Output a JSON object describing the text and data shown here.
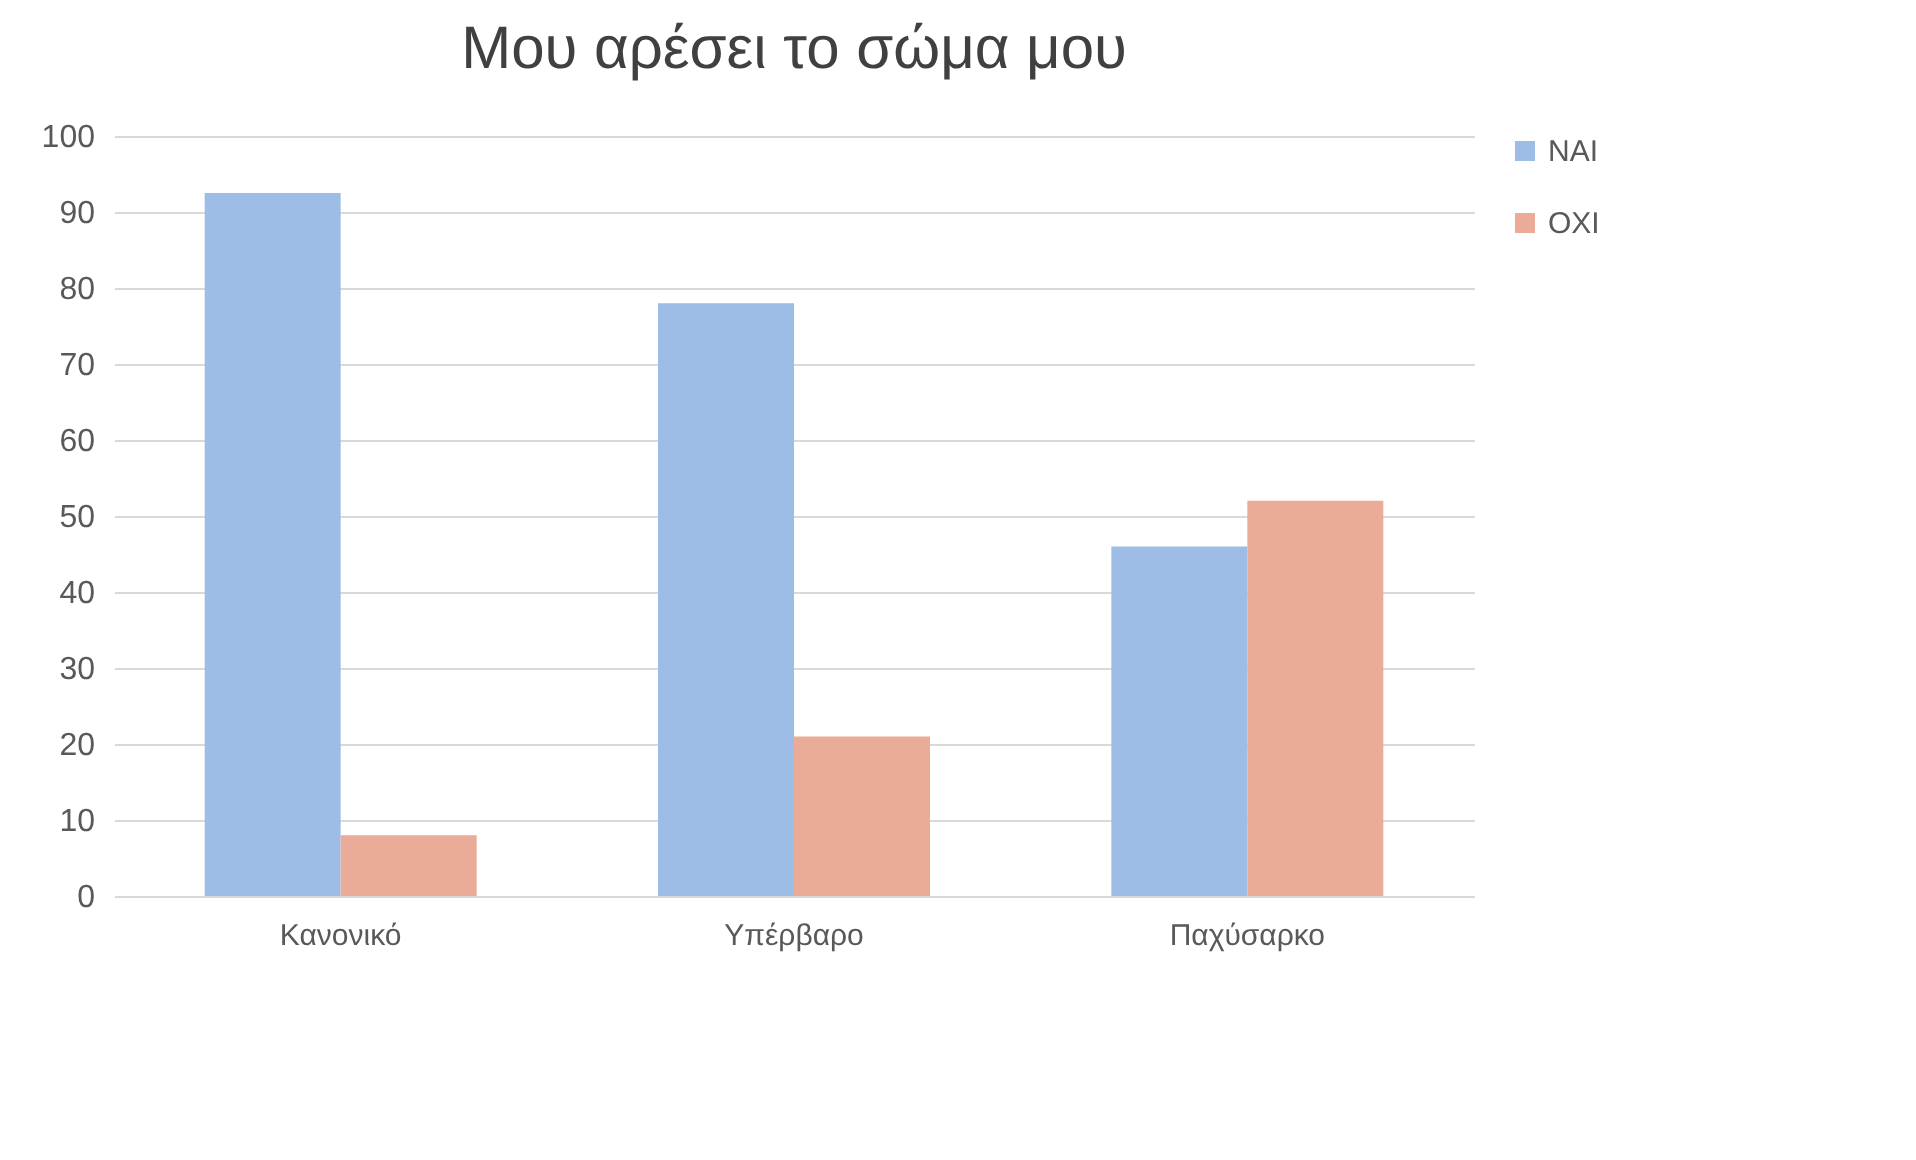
{
  "chart_data": {
    "type": "bar",
    "title": "Μου αρέσει το σώμα μου",
    "categories": [
      "Κανονικό",
      "Υπέρβαρο",
      "Παχύσαρκο"
    ],
    "series": [
      {
        "name": "ΝΑΙ",
        "color": "#9dbde6",
        "values": [
          92.5,
          78,
          46
        ]
      },
      {
        "name": "ΟΧΙ",
        "color": "#eaab98",
        "values": [
          8,
          21,
          52
        ]
      }
    ],
    "ylim": [
      0,
      100
    ],
    "yticks": [
      0,
      10,
      20,
      30,
      40,
      50,
      60,
      70,
      80,
      90,
      100
    ],
    "grid": "y",
    "legend": "right"
  }
}
